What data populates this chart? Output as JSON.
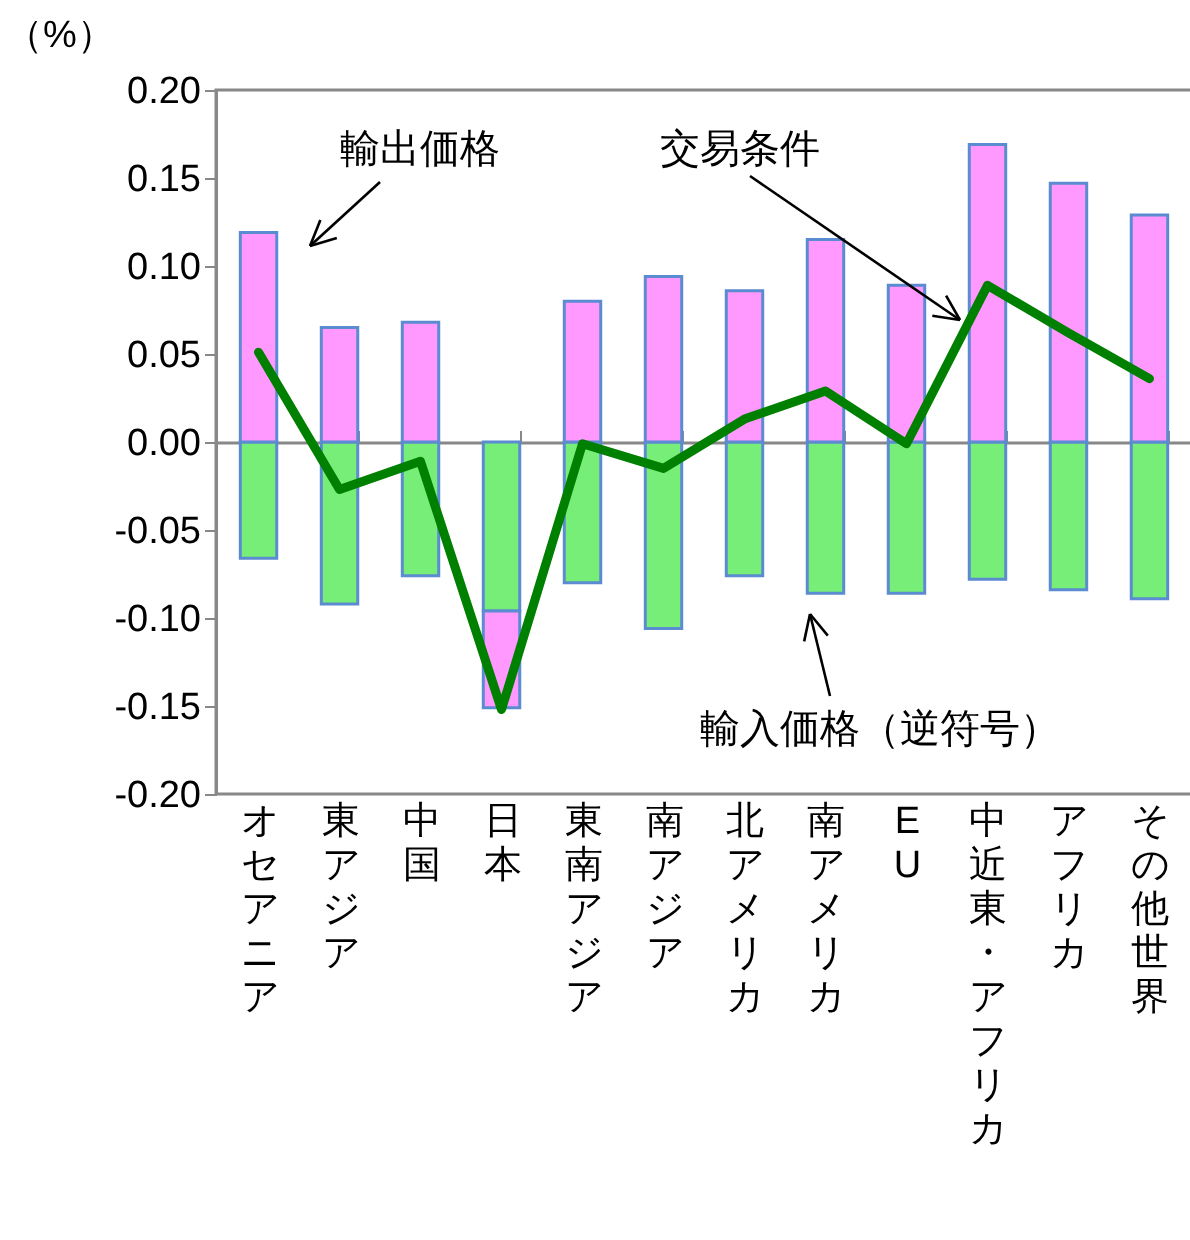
{
  "chart_data": {
    "type": "bar",
    "stacked": true,
    "ylabel": "（%）",
    "categories": [
      "オセアニア",
      "東アジア",
      "中国",
      "日本",
      "東南アジア",
      "南アジア",
      "北アメリカ",
      "南アメリカ",
      "EU",
      "中近東・アフリカ",
      "アフリカ",
      "その他世界"
    ],
    "series": [
      {
        "name": "輸入価格（逆符号）",
        "color": "#77ee77",
        "values": [
          -0.066,
          -0.092,
          -0.076,
          -0.096,
          -0.08,
          -0.106,
          -0.076,
          -0.086,
          -0.086,
          -0.078,
          -0.084,
          -0.089
        ]
      },
      {
        "name": "輸出価格",
        "color": "#ff99ff",
        "values": [
          0.119,
          0.065,
          0.068,
          -0.055,
          0.08,
          0.094,
          0.086,
          0.115,
          0.089,
          0.169,
          0.147,
          0.129
        ]
      },
      {
        "name": "交易条件",
        "type": "line",
        "color": "#008000",
        "values": [
          0.051,
          -0.027,
          -0.011,
          -0.152,
          -0.001,
          -0.015,
          0.013,
          0.029,
          -0.001,
          0.089,
          0.062,
          0.036
        ]
      }
    ],
    "ylim": [
      -0.2,
      0.2
    ],
    "yticks": [
      {
        "value": -0.2,
        "label": "-0.20"
      },
      {
        "value": -0.15,
        "label": "-0.15"
      },
      {
        "value": -0.1,
        "label": "-0.10"
      },
      {
        "value": -0.05,
        "label": "-0.05"
      },
      {
        "value": 0,
        "label": "0.00"
      },
      {
        "value": 0.05,
        "label": "0.05"
      },
      {
        "value": 0.1,
        "label": "0.10"
      },
      {
        "value": 0.15,
        "label": "0.15"
      },
      {
        "value": 0.2,
        "label": "0.20"
      }
    ]
  }
}
